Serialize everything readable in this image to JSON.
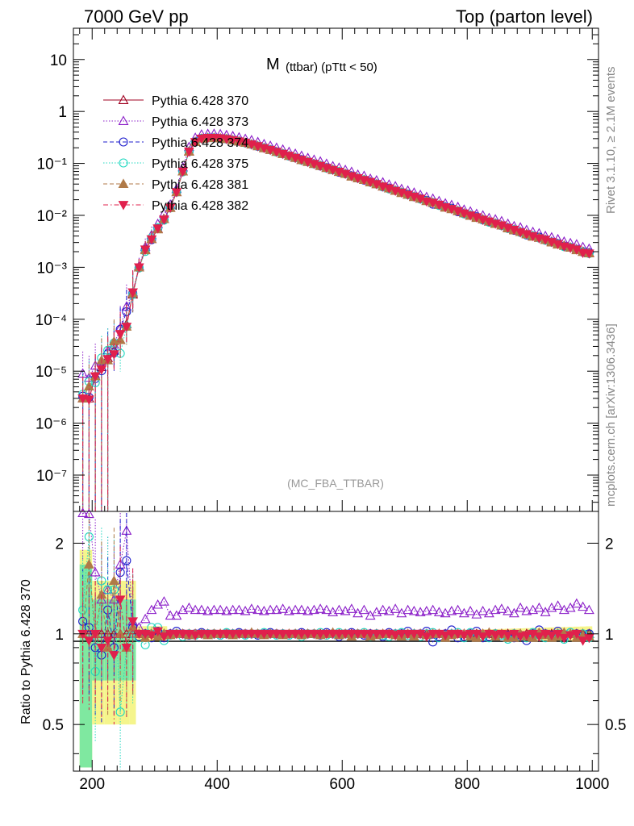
{
  "header": {
    "left": "7000 GeV pp",
    "right": "Top (parton level)"
  },
  "side_labels": {
    "upper": "Rivet 3.1.10, ≥ 2.1M events",
    "lower": "mcplots.cern.ch [arXiv:1306.3436]"
  },
  "chart_data": {
    "type": "line",
    "title_main": "M",
    "title_sub": "(ttbar) (pTtt < 50)",
    "watermark": "(MC_FBA_TTBAR)",
    "xlabel": "",
    "ylabel_ratio": "Ratio to Pythia 6.428 370",
    "xlim": [
      170,
      1010
    ],
    "top_panel": {
      "yscale": "log",
      "ylim": [
        2e-08,
        40
      ],
      "ytick_labels": [
        "10",
        "1",
        "10⁻¹",
        "10⁻²",
        "10⁻³",
        "10⁻⁴",
        "10⁻⁵",
        "10⁻⁶",
        "10⁻⁷"
      ],
      "ytick_values": [
        10,
        1,
        0.1,
        0.01,
        0.001,
        0.0001,
        1e-05,
        1e-06,
        1e-07
      ]
    },
    "ratio_panel": {
      "yscale": "log",
      "ylim": [
        0.35,
        2.55
      ],
      "ytick_labels": [
        "2",
        "1",
        "0.5"
      ],
      "ytick_values": [
        2,
        1,
        0.5
      ]
    },
    "xtick_labels": [
      "200",
      "400",
      "600",
      "800",
      "1000"
    ],
    "xtick_values": [
      200,
      400,
      600,
      800,
      1000
    ],
    "legend_position": "top-left",
    "series": [
      {
        "name": "Pythia 6.428 370",
        "color": "#a00020",
        "marker": "triangle-open",
        "dash": "solid"
      },
      {
        "name": "Pythia 6.428 373",
        "color": "#8a1cc8",
        "marker": "triangle-open",
        "dash": "dotted"
      },
      {
        "name": "Pythia 6.428 374",
        "color": "#1c1ccc",
        "marker": "circle-open",
        "dash": "dashed"
      },
      {
        "name": "Pythia 6.428 375",
        "color": "#20d8c0",
        "marker": "circle-open",
        "dash": "dotted"
      },
      {
        "name": "Pythia 6.428 381",
        "color": "#b07a48",
        "marker": "triangle-filled",
        "dash": "dashed"
      },
      {
        "name": "Pythia 6.428 382",
        "color": "#e0204c",
        "marker": "triangle-down-filled",
        "dash": "dashdot"
      }
    ],
    "x": [
      185,
      195,
      205,
      215,
      225,
      235,
      245,
      255,
      265,
      275,
      285,
      295,
      305,
      315,
      325,
      335,
      345,
      355,
      365,
      375,
      385,
      395,
      405,
      415,
      425,
      435,
      445,
      455,
      465,
      475,
      485,
      495,
      505,
      515,
      525,
      535,
      545,
      555,
      565,
      575,
      585,
      595,
      605,
      615,
      625,
      635,
      645,
      655,
      665,
      675,
      685,
      695,
      705,
      715,
      725,
      735,
      745,
      755,
      765,
      775,
      785,
      795,
      805,
      815,
      825,
      835,
      845,
      855,
      865,
      875,
      885,
      895,
      905,
      915,
      925,
      935,
      945,
      955,
      965,
      975,
      985,
      995
    ],
    "reference_values": [
      3e-06,
      3e-06,
      8e-06,
      1.2e-05,
      1.8e-05,
      2.5e-05,
      4e-05,
      8e-05,
      0.0003,
      0.001,
      0.0022,
      0.0035,
      0.0055,
      0.0085,
      0.014,
      0.028,
      0.07,
      0.17,
      0.26,
      0.3,
      0.31,
      0.31,
      0.305,
      0.295,
      0.28,
      0.265,
      0.25,
      0.232,
      0.215,
      0.198,
      0.182,
      0.167,
      0.153,
      0.14,
      0.128,
      0.117,
      0.107,
      0.098,
      0.09,
      0.082,
      0.075,
      0.069,
      0.063,
      0.057,
      0.052,
      0.048,
      0.044,
      0.04,
      0.036,
      0.033,
      0.03,
      0.0275,
      0.025,
      0.023,
      0.021,
      0.019,
      0.0175,
      0.016,
      0.0145,
      0.0133,
      0.0121,
      0.011,
      0.01,
      0.0092,
      0.0084,
      0.0076,
      0.007,
      0.0064,
      0.0058,
      0.0053,
      0.0048,
      0.0044,
      0.004,
      0.0037,
      0.0034,
      0.0031,
      0.0028,
      0.0026,
      0.0024,
      0.0022,
      0.002,
      0.0019
    ],
    "ratios": [
      [
        1,
        1,
        1,
        1,
        1,
        1,
        1,
        1,
        1,
        1,
        1,
        1,
        1,
        1,
        1,
        1,
        1,
        1,
        1,
        1,
        1,
        1,
        1,
        1,
        1,
        1,
        1,
        1,
        1,
        1,
        1,
        1,
        1,
        1,
        1,
        1,
        1,
        1,
        1,
        1,
        1,
        1,
        1,
        1,
        1,
        1,
        1,
        1,
        1,
        1,
        1,
        1,
        1,
        1,
        1,
        1,
        1,
        1,
        1,
        1,
        1,
        1,
        1,
        1,
        1,
        1,
        1,
        1,
        1,
        1,
        1,
        1,
        1,
        1,
        1,
        1,
        1,
        1,
        1,
        1,
        1,
        1
      ],
      [
        3.0,
        2.5,
        1.6,
        1.3,
        1.4,
        1.3,
        1.7,
        2.2,
        1.1,
        1.05,
        1.12,
        1.2,
        1.25,
        1.28,
        1.15,
        1.15,
        1.2,
        1.22,
        1.2,
        1.2,
        1.19,
        1.2,
        1.2,
        1.19,
        1.2,
        1.2,
        1.19,
        1.21,
        1.2,
        1.19,
        1.2,
        1.2,
        1.21,
        1.19,
        1.2,
        1.2,
        1.19,
        1.2,
        1.21,
        1.2,
        1.18,
        1.2,
        1.19,
        1.21,
        1.17,
        1.2,
        1.15,
        1.18,
        1.2,
        1.19,
        1.21,
        1.17,
        1.2,
        1.19,
        1.18,
        1.19,
        1.2,
        1.18,
        1.17,
        1.19,
        1.2,
        1.17,
        1.19,
        1.16,
        1.19,
        1.17,
        1.2,
        1.21,
        1.19,
        1.17,
        1.22,
        1.19,
        1.2,
        1.22,
        1.18,
        1.22,
        1.24,
        1.2,
        1.22,
        1.26,
        1.23,
        1.2
      ],
      [
        1.1,
        1.05,
        0.9,
        0.85,
        1.2,
        0.9,
        1.6,
        1.75,
        1.05,
        0.98,
        1.0,
        0.97,
        1.02,
        0.97,
        1.0,
        1.02,
        1.0,
        0.99,
        1.0,
        1.01,
        1.0,
        1.0,
        0.99,
        1.0,
        1.0,
        1.01,
        1.0,
        1.0,
        0.99,
        1.0,
        1.01,
        1.0,
        1.0,
        0.99,
        1.0,
        1.01,
        1.0,
        1.0,
        0.99,
        1.01,
        1.0,
        0.98,
        1.0,
        1.01,
        1.0,
        0.99,
        1.0,
        1.0,
        0.98,
        1.01,
        1.0,
        1.0,
        1.02,
        0.99,
        1.0,
        1.02,
        0.94,
        0.98,
        1.0,
        1.03,
        0.97,
        0.98,
        1.0,
        1.02,
        0.97,
        0.98,
        1.0,
        0.99,
        0.99,
        0.97,
        0.98,
        0.95,
        1.0,
        1.03,
        1.0,
        0.99,
        1.02,
        0.98,
        1.01,
        1.0,
        0.98,
        1.0
      ],
      [
        1.2,
        2.1,
        0.75,
        1.5,
        1.4,
        1.4,
        0.55,
        0.9,
        1.0,
        0.97,
        0.92,
        1.05,
        1.05,
        0.95,
        0.99,
        1.0,
        0.98,
        1.0,
        0.99,
        1.0,
        1.0,
        1.0,
        0.99,
        1.01,
        1.0,
        1.0,
        0.99,
        1.0,
        1.0,
        1.01,
        1.0,
        0.99,
        1.0,
        0.99,
        1.0,
        0.98,
        1.0,
        1.0,
        1.01,
        0.99,
        1.0,
        1.01,
        1.0,
        0.99,
        1.0,
        1.01,
        0.98,
        1.0,
        0.99,
        0.98,
        1.0,
        1.01,
        0.99,
        1.0,
        0.98,
        1.0,
        1.01,
        0.97,
        0.99,
        1.0,
        1.01,
        0.97,
        1.01,
        0.99,
        0.98,
        0.97,
        1.0,
        0.99,
        0.96,
        1.0,
        0.98,
        0.97,
        1.01,
        0.99,
        0.97,
        0.98,
        1.0,
        0.96,
        1.01,
        0.99,
        1.0,
        0.97
      ],
      [
        1.0,
        1.7,
        1.0,
        1.35,
        0.9,
        1.5,
        1.0,
        0.9,
        1.05,
        1.0,
        0.97,
        1.0,
        0.98,
        1.0,
        0.99,
        1.0,
        1.0,
        0.99,
        1.0,
        1.0,
        0.99,
        1.0,
        1.0,
        1.0,
        0.99,
        1.0,
        1.0,
        1.01,
        1.0,
        0.99,
        1.0,
        1.0,
        0.99,
        1.0,
        1.0,
        0.99,
        1.0,
        1.0,
        0.99,
        1.0,
        1.01,
        0.99,
        1.0,
        0.98,
        1.0,
        1.0,
        0.98,
        0.99,
        1.0,
        1.0,
        0.99,
        0.98,
        1.0,
        0.98,
        1.0,
        0.99,
        1.0,
        1.0,
        0.97,
        0.99,
        1.0,
        1.0,
        0.98,
        0.97,
        1.0,
        1.01,
        0.98,
        1.0,
        0.97,
        0.97,
        1.0,
        0.98,
        0.97,
        1.01,
        0.99,
        0.97,
        0.98,
        1.01,
        1.0,
        0.97,
        0.99,
        0.98
      ],
      [
        1.0,
        0.95,
        1.0,
        0.9,
        0.95,
        0.85,
        1.3,
        0.9,
        1.1,
        1.0,
        1.0,
        0.99,
        1.02,
        0.98,
        1.0,
        1.0,
        1.0,
        1.0,
        0.99,
        1.0,
        1.0,
        1.0,
        1.0,
        1.0,
        1.0,
        1.0,
        1.0,
        1.0,
        1.0,
        1.0,
        1.0,
        1.0,
        1.0,
        1.0,
        1.0,
        1.0,
        1.0,
        1.0,
        1.0,
        1.0,
        1.0,
        1.0,
        1.0,
        1.0,
        1.0,
        1.0,
        1.0,
        1.0,
        1.0,
        1.0,
        0.99,
        1.0,
        1.0,
        1.0,
        1.0,
        0.98,
        1.0,
        1.0,
        0.99,
        1.0,
        1.0,
        0.99,
        1.0,
        1.0,
        0.98,
        1.0,
        0.99,
        1.0,
        0.99,
        1.0,
        0.98,
        0.99,
        1.0,
        0.98,
        1.0,
        0.99,
        1.0,
        0.97,
        0.99,
        1.0,
        0.95,
        0.97
      ]
    ]
  }
}
